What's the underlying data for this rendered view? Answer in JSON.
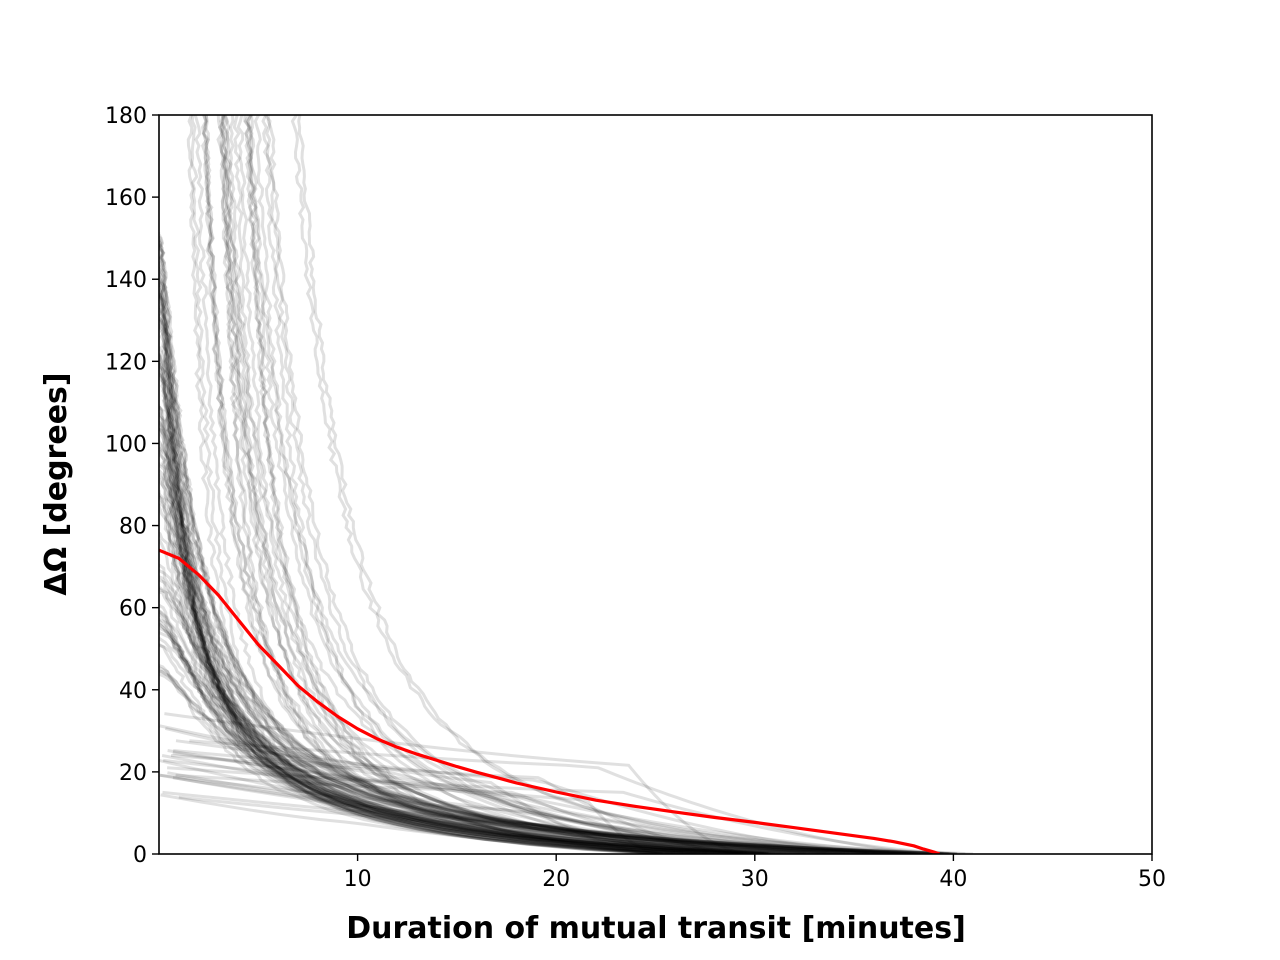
{
  "chart_data": {
    "type": "line",
    "title": "",
    "xlabel": "Duration of mutual transit [minutes]",
    "ylabel": "ΔΩ [degrees]",
    "xlim": [
      0,
      50
    ],
    "ylim": [
      0,
      180
    ],
    "x_ticks": [
      10,
      20,
      30,
      40,
      50
    ],
    "y_ticks": [
      0,
      20,
      40,
      60,
      80,
      100,
      120,
      140,
      160,
      180
    ],
    "x_tick_labels": [
      "10",
      "20",
      "30",
      "40",
      "50"
    ],
    "y_tick_labels": [
      "0",
      "20",
      "40",
      "60",
      "80",
      "100",
      "120",
      "140",
      "160",
      "180"
    ],
    "grid": false,
    "legend": "none",
    "colors": {
      "ensemble": "#000000",
      "highlight": "#ff0000"
    },
    "ensemble_count": 120,
    "ensemble_opacity": 0.12,
    "highlight_series": {
      "x": [
        0.0,
        1.0,
        2.0,
        3.0,
        4.0,
        5.0,
        6.0,
        7.0,
        8.0,
        9.0,
        10.0,
        11.0,
        12.0,
        13.0,
        14.0,
        15.0,
        16.0,
        17.0,
        18.0,
        19.0,
        20.0,
        22.0,
        24.0,
        26.0,
        28.0,
        30.0,
        32.0,
        34.0,
        36.0,
        37.0,
        38.0,
        38.5,
        39.0,
        39.3
      ],
      "y": [
        74,
        72,
        68,
        63,
        57,
        51,
        46,
        41,
        37,
        33.5,
        30.5,
        28,
        26,
        24.3,
        22.8,
        21.3,
        19.9,
        18.6,
        17.3,
        16.2,
        15.1,
        13.1,
        11.6,
        10.2,
        8.9,
        7.7,
        6.4,
        5.1,
        3.8,
        3.0,
        2.0,
        1.2,
        0.5,
        0.0
      ]
    }
  }
}
